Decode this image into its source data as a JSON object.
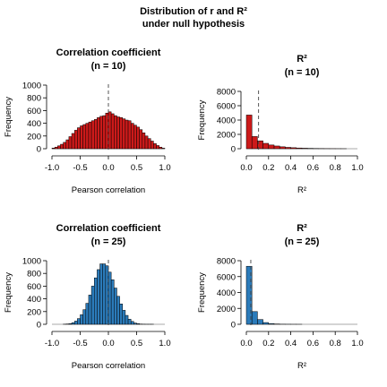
{
  "figure": {
    "title_line1": "Distribution of r and R²",
    "title_line2": "under null hypothesis"
  },
  "chart_data": [
    {
      "type": "bar",
      "title_line1": "Correlation coefficient",
      "title_line2": "(n = 10)",
      "xlabel": "Pearson correlation",
      "ylabel": "Frequency",
      "xlim": [
        -1,
        1
      ],
      "ylim": [
        0,
        1000
      ],
      "xticks": [
        -1.0,
        -0.5,
        0.0,
        0.5,
        1.0
      ],
      "xtick_labels": [
        "-1.0",
        "-0.5",
        "0.0",
        "0.5",
        "1.0"
      ],
      "yticks": [
        0,
        200,
        400,
        600,
        800,
        1000
      ],
      "ytick_labels": [
        "0",
        "200",
        "400",
        "600",
        "800",
        "1000"
      ],
      "bin_start": -1.0,
      "bin_width": 0.05,
      "values": [
        10,
        25,
        45,
        70,
        100,
        140,
        190,
        240,
        290,
        330,
        360,
        380,
        400,
        420,
        440,
        460,
        490,
        510,
        520,
        560,
        580,
        550,
        520,
        500,
        490,
        470,
        450,
        440,
        400,
        370,
        340,
        300,
        250,
        200,
        160,
        120,
        80,
        50,
        25,
        8
      ],
      "vline": 0.0,
      "bar_color": "#cc1a1a"
    },
    {
      "type": "bar",
      "title_line1": "R²",
      "title_line2": "(n = 10)",
      "xlabel": "R²",
      "ylabel": "Frequency",
      "xlim": [
        0,
        1
      ],
      "ylim": [
        0,
        8000
      ],
      "xticks": [
        0.0,
        0.2,
        0.4,
        0.6,
        0.8,
        1.0
      ],
      "xtick_labels": [
        "0.0",
        "0.2",
        "0.4",
        "0.6",
        "0.8",
        "1.0"
      ],
      "yticks": [
        0,
        2000,
        4000,
        6000,
        8000
      ],
      "ytick_labels": [
        "0",
        "2000",
        "4000",
        "6000",
        "8000"
      ],
      "bin_start": 0.0,
      "bin_width": 0.05,
      "values": [
        4700,
        1700,
        1100,
        750,
        520,
        380,
        270,
        190,
        140,
        100,
        70,
        50,
        35,
        25,
        15,
        10,
        5,
        3
      ],
      "vline": 0.11,
      "bar_color": "#cc1a1a"
    },
    {
      "type": "bar",
      "title_line1": "Correlation coefficient",
      "title_line2": "(n = 25)",
      "xlabel": "Pearson correlation",
      "ylabel": "Frequency",
      "xlim": [
        -1,
        1
      ],
      "ylim": [
        0,
        1000
      ],
      "xticks": [
        -1.0,
        -0.5,
        0.0,
        0.5,
        1.0
      ],
      "xtick_labels": [
        "-1.0",
        "-0.5",
        "0.0",
        "0.5",
        "1.0"
      ],
      "yticks": [
        0,
        200,
        400,
        600,
        800,
        1000
      ],
      "ytick_labels": [
        "0",
        "200",
        "400",
        "600",
        "800",
        "1000"
      ],
      "bin_start": -0.8,
      "bin_width": 0.05,
      "values": [
        2,
        5,
        10,
        25,
        50,
        90,
        150,
        230,
        330,
        460,
        600,
        730,
        860,
        950,
        950,
        920,
        820,
        700,
        570,
        440,
        320,
        220,
        140,
        80,
        45,
        20,
        10,
        4,
        2,
        1,
        1,
        1
      ],
      "vline": 0.0,
      "bar_color": "#2b7bba"
    },
    {
      "type": "bar",
      "title_line1": "R²",
      "title_line2": "(n = 25)",
      "xlabel": "R²",
      "ylabel": "Frequency",
      "xlim": [
        0,
        1
      ],
      "ylim": [
        0,
        8000
      ],
      "xticks": [
        0.0,
        0.2,
        0.4,
        0.6,
        0.8,
        1.0
      ],
      "xtick_labels": [
        "0.0",
        "0.2",
        "0.4",
        "0.6",
        "0.8",
        "1.0"
      ],
      "yticks": [
        0,
        2000,
        4000,
        6000,
        8000
      ],
      "ytick_labels": [
        "0",
        "2000",
        "4000",
        "6000",
        "8000"
      ],
      "bin_start": 0.0,
      "bin_width": 0.05,
      "values": [
        7300,
        1600,
        600,
        220,
        90,
        40,
        15,
        8,
        3,
        1
      ],
      "vline": 0.04,
      "bar_color": "#2b7bba"
    }
  ]
}
